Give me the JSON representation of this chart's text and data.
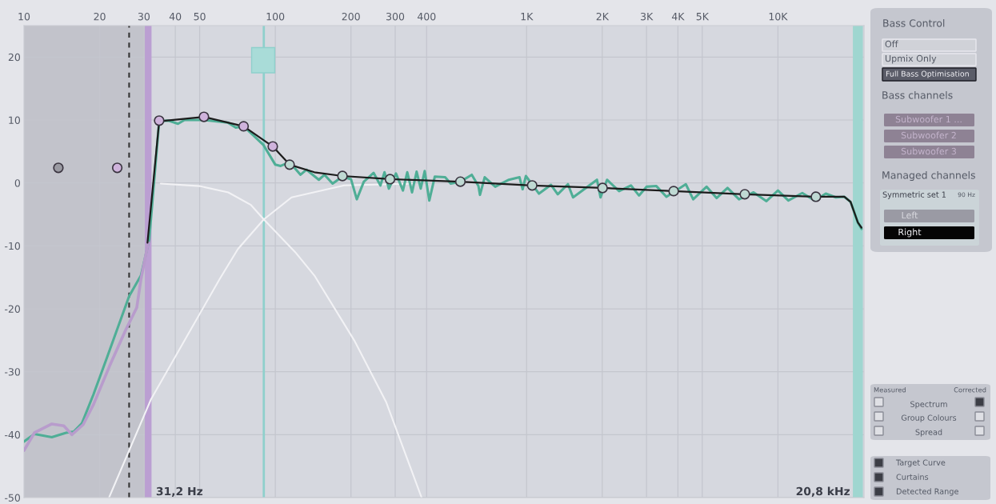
{
  "chart_data": {
    "type": "line",
    "log": "x",
    "grid": true,
    "xlim": [
      10,
      22000
    ],
    "ylim": [
      -50,
      25
    ],
    "xticks": [
      10,
      20,
      30,
      40,
      50,
      100,
      200,
      300,
      400,
      {
        "value": 1000,
        "label": "1K"
      },
      {
        "value": 2000,
        "label": "2K"
      },
      {
        "value": 3000,
        "label": "3K"
      },
      {
        "value": 4000,
        "label": "4K"
      },
      {
        "value": 5000,
        "label": "5K"
      },
      {
        "value": 10000,
        "label": "10K"
      }
    ],
    "yticks": [
      20,
      10,
      0,
      -10,
      -20,
      -30,
      -40,
      -50
    ],
    "series": [
      {
        "color": "#f2f2f5",
        "x": [
          35,
          50,
          65,
          80,
          90,
          120,
          143,
          206,
          276,
          382
        ],
        "values": [
          -0.1,
          -0.5,
          -1.5,
          -3.5,
          -5.8,
          -11,
          -14.7,
          -25,
          -34.8,
          -50
        ]
      },
      {
        "color": "#f2f2f5",
        "x": [
          21.8,
          32,
          44,
          60,
          71,
          90,
          116,
          188,
          350
        ],
        "values": [
          -50,
          -34.4,
          -24.7,
          -15.3,
          -10.5,
          -5.8,
          -2.3,
          -0.4,
          -0.1
        ]
      },
      {
        "color": "#4fae96",
        "x": [
          10,
          11,
          12.9,
          14.7,
          15.8,
          17,
          18.9,
          21.5,
          26.2,
          29.2,
          31.5,
          34.5,
          37.6,
          41,
          43.5,
          52,
          64.7,
          69.6,
          74.8,
          80.6,
          89.8,
          100,
          105,
          114,
          126,
          133,
          149,
          157,
          169,
          185,
          200,
          211,
          225,
          246,
          262,
          272,
          283,
          302,
          322,
          335,
          350,
          365,
          379,
          393,
          410,
          431,
          474,
          499,
          545,
          605,
          643,
          652,
          681,
          750,
          850,
          937,
          964,
          993,
          1120,
          1250,
          1330,
          1460,
          1530,
          1905,
          1968,
          2089,
          2333,
          2600,
          2800,
          3000,
          3283,
          3600,
          4300,
          4600,
          5200,
          5700,
          6300,
          7000,
          8000,
          9000,
          10000,
          11000,
          12500,
          14000,
          15500,
          17000,
          18370,
          19450,
          20800,
          21500
        ],
        "values": [
          -41.1,
          -39.9,
          -40.4,
          -39.7,
          -39.5,
          -38.2,
          -33.6,
          -27.5,
          -18,
          -14.7,
          -9,
          9.8,
          9.9,
          9.4,
          10,
          10,
          9.6,
          8.8,
          9,
          7.8,
          6,
          2.9,
          2.7,
          3.3,
          1.3,
          2.1,
          0.5,
          1.3,
          -0.1,
          1,
          0.6,
          -2.6,
          0.2,
          1.6,
          -0.4,
          1.7,
          -0.9,
          1.5,
          -1.2,
          1.7,
          -1.5,
          1.8,
          -0.9,
          1.9,
          -2.8,
          1,
          0.9,
          -0.1,
          0.2,
          1.3,
          -0.5,
          -1.9,
          0.9,
          -0.6,
          0.5,
          0.9,
          -1,
          1.1,
          -1.7,
          -0.3,
          -1.8,
          -0.2,
          -2.3,
          0.5,
          -2.3,
          0.5,
          -1.3,
          -0.4,
          -2,
          -0.6,
          -0.5,
          -2.2,
          -0.2,
          -2.6,
          -0.6,
          -2.4,
          -0.8,
          -2.6,
          -1.5,
          -2.9,
          -1.2,
          -2.8,
          -1.6,
          -2.8,
          -1.7,
          -2.3,
          -2.2,
          -3,
          -6.3,
          -7.3
        ]
      },
      {
        "color": "#b89ccc",
        "x": [
          10,
          11,
          12.9,
          14.4,
          15.5,
          17.2,
          18.9,
          21.9,
          25.3,
          28.1,
          29.2,
          31.2
        ],
        "values": [
          -42.5,
          -39.7,
          -38.3,
          -38.6,
          -40,
          -38.4,
          -35.2,
          -29.1,
          -23.5,
          -19.8,
          -15.3,
          -9.5
        ]
      },
      {
        "color": "#1c1c1c",
        "x": [
          31,
          34.5,
          52,
          74.8,
          97.7,
          114,
          143,
          185,
          286,
          545,
          1052,
          2005,
          3846,
          7380,
          14160,
          18370,
          19450,
          20800,
          21500
        ],
        "values": [
          -9.5,
          9.8,
          10.5,
          9,
          5.8,
          2.9,
          1.7,
          1.1,
          0.6,
          0.2,
          -0.4,
          -0.8,
          -1.3,
          -1.8,
          -2.2,
          -2.2,
          -3,
          -6.3,
          -7.1
        ]
      },
      {
        "type": "scatter",
        "marker": "circle",
        "x": [
          13.7,
          23.5,
          34.5,
          52,
          74.8,
          97.7,
          114,
          185,
          286,
          545,
          1052,
          2005,
          3846,
          7380,
          14160
        ],
        "values": [
          2.4,
          2.4,
          9.9,
          10.5,
          9,
          5.8,
          2.9,
          1.1,
          0.6,
          0.2,
          -0.4,
          -0.8,
          -1.3,
          -1.8,
          -2.2
        ],
        "colors": [
          "#9a9aa2",
          "#cfb3dc",
          "#cfb3dc",
          "#cfb3dc",
          "#cfb3dc",
          "#cfb3dc",
          "#bfd9d3",
          "#bfd9d3",
          "#bfd9d3",
          "#bfd9d3",
          "#bfd9d3",
          "#bfd9d3",
          "#bfd9d3",
          "#bfd9d3",
          "#bfd9d3"
        ]
      }
    ],
    "bands": [
      {
        "axis": "x",
        "from": 10,
        "to": 31.2,
        "color": "#c2c3cb"
      }
    ],
    "ref_lines": [
      {
        "axis": "x",
        "value": 26.2,
        "color": "#333333",
        "line_style": "dashed"
      },
      {
        "axis": "x",
        "value": 31.2,
        "label": "31,2 Hz",
        "color": "#bb9fd2"
      },
      {
        "axis": "x",
        "value": 90,
        "color": "#8fd0cc"
      },
      {
        "axis": "x",
        "value": 20800,
        "label": "20,8 kHz",
        "color": "#9fd6d0"
      }
    ],
    "annotations": [
      "Bass Control",
      "Off",
      "Upmix Only",
      "Full Bass Optimisation",
      "Bass channels",
      "Subwoofer 1 ...",
      "Subwoofer 2",
      "Subwoofer 3",
      "Managed channels",
      "Symmetric set 1",
      "90 Hz",
      "Left",
      "Right",
      "Measured",
      "Corrected",
      "Spectrum",
      "Group Colours",
      "Spread",
      "Target Curve",
      "Curtains",
      "Detected Range"
    ]
  }
}
